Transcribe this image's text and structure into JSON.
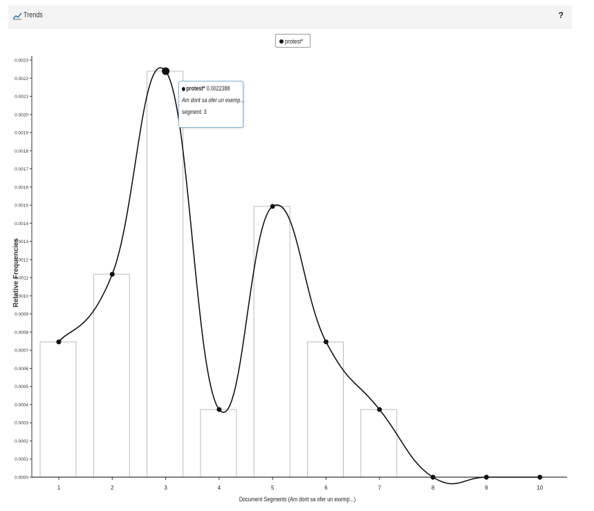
{
  "window": {
    "title": "Trends",
    "help_label": "?"
  },
  "legend": {
    "label": "protest*"
  },
  "tooltip": {
    "term": "protest*",
    "value": "0.0022388",
    "context": "Am dorit sa ofer un exemp...",
    "segment": "segment: 3"
  },
  "chart_data": {
    "type": "bar",
    "title": "",
    "xlabel": "Document Segments (Am dorit sa ofer un exemp...)",
    "ylabel": "Relative Frequencies",
    "categories": [
      "1",
      "2",
      "3",
      "4",
      "5",
      "6",
      "7",
      "8",
      "9",
      "10"
    ],
    "series": [
      {
        "name": "protest*",
        "values": [
          0.000746,
          0.001119,
          0.0022388,
          0.000373,
          0.001493,
          0.000746,
          0.000373,
          0,
          0,
          0
        ]
      }
    ],
    "overlay": "smoothed line with markers",
    "ylim": [
      0,
      0.0023
    ],
    "yticks": [
      "0.0000",
      "0.0001",
      "0.0002",
      "0.0003",
      "0.0004",
      "0.0005",
      "0.0006",
      "0.0007",
      "0.0008",
      "0.0009",
      "0.0010",
      "0.0011",
      "0.0012",
      "0.0013",
      "0.0014",
      "0.0015",
      "0.0016",
      "0.0017",
      "0.0018",
      "0.0019",
      "0.0020",
      "0.0021",
      "0.0022",
      "0.0023"
    ],
    "highlighted_category": "3",
    "legend_position": "top-center",
    "grid": false,
    "colors": {
      "line": "#111111",
      "bar_stroke": "#bbbbbb",
      "tooltip_border": "#7fb4d6"
    }
  }
}
